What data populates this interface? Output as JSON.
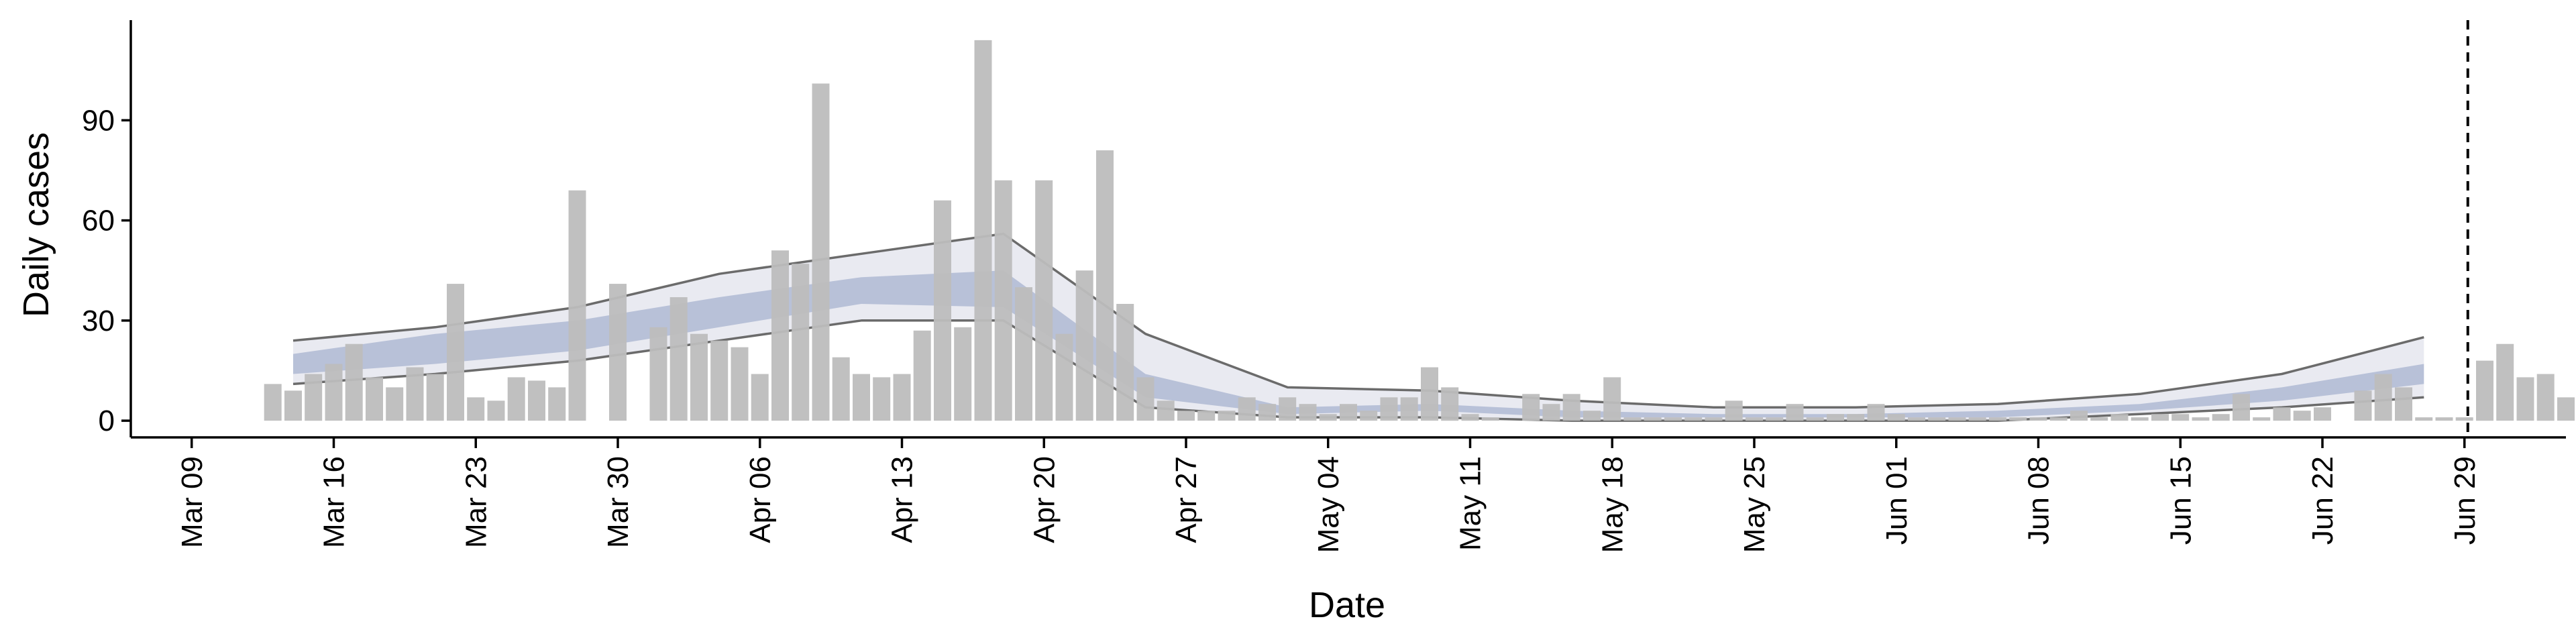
{
  "chart_data": {
    "type": "bar",
    "xlabel": "Date",
    "ylabel": "Daily cases",
    "yticks": [
      0,
      30,
      60,
      90
    ],
    "ylim": [
      -5,
      120
    ],
    "xlim": [
      "2020-03-06",
      "2020-07-04"
    ],
    "xtick_dates": [
      "2020-03-09",
      "2020-03-16",
      "2020-03-23",
      "2020-03-30",
      "2020-04-06",
      "2020-04-13",
      "2020-04-20",
      "2020-04-27",
      "2020-05-04",
      "2020-05-11",
      "2020-05-18",
      "2020-05-25",
      "2020-06-01",
      "2020-06-08",
      "2020-06-15",
      "2020-06-22",
      "2020-06-29"
    ],
    "xtick_labels": [
      "Mar 09",
      "Mar 16",
      "Mar 23",
      "Mar 30",
      "Apr 06",
      "Apr 13",
      "Apr 20",
      "Apr 27",
      "May 04",
      "May 11",
      "May 18",
      "May 25",
      "Jun 01",
      "Jun 08",
      "Jun 15",
      "Jun 22",
      "Jun 29"
    ],
    "vline_date": "2020-06-29",
    "grid": false,
    "legend": "none",
    "colors": {
      "bars": "#bdbdbd",
      "outer_band": "#e9eaf1",
      "inner_band": "#b8c1d8",
      "band_edge": "#6b6b6b",
      "vline": "#000000"
    },
    "daily_cases": {
      "start_date": "2020-03-13",
      "values": [
        11,
        9,
        14,
        17,
        23,
        13,
        10,
        16,
        14,
        41,
        7,
        6,
        13,
        12,
        10,
        69,
        0,
        41,
        0,
        28,
        37,
        26,
        24,
        22,
        14,
        51,
        47,
        101,
        19,
        14,
        13,
        14,
        27,
        66,
        28,
        114,
        72,
        40,
        72,
        26,
        45,
        81,
        35,
        13,
        6,
        3,
        3,
        3,
        7,
        5,
        7,
        5,
        2,
        5,
        3,
        7,
        7,
        16,
        10,
        2,
        1,
        0,
        8,
        5,
        8,
        3,
        13,
        1,
        1,
        1,
        1,
        1,
        6,
        1,
        1,
        5,
        1,
        2,
        2,
        5,
        2,
        1,
        1,
        1,
        1,
        1,
        1,
        1,
        1,
        3,
        1,
        2,
        1,
        2,
        2,
        1,
        2,
        8,
        1,
        4,
        3,
        4,
        0,
        9,
        14,
        10,
        1,
        1,
        1,
        18,
        23,
        13,
        14,
        7,
        1
      ]
    },
    "band_series": [
      {
        "start_date": "2020-03-14",
        "date_step_days": 7,
        "outer_upper": [
          24,
          28,
          34,
          44,
          50,
          56,
          26,
          10,
          9,
          6,
          4,
          4,
          5,
          8,
          14,
          25
        ],
        "inner_upper": [
          20,
          26,
          30,
          37,
          43,
          45,
          14,
          4,
          5,
          3,
          2,
          2,
          3,
          5,
          10,
          17
        ],
        "median": [
          17,
          21,
          25,
          32,
          39,
          40,
          10,
          3,
          4,
          2,
          1,
          1,
          2,
          4,
          8,
          14
        ],
        "inner_lower": [
          14,
          17,
          21,
          28,
          35,
          34,
          7,
          2,
          3,
          1,
          1,
          1,
          1,
          3,
          6,
          11
        ],
        "outer_lower": [
          11,
          14,
          18,
          24,
          30,
          30,
          4,
          1,
          1,
          0,
          0,
          0,
          0,
          2,
          4,
          7
        ]
      }
    ]
  }
}
